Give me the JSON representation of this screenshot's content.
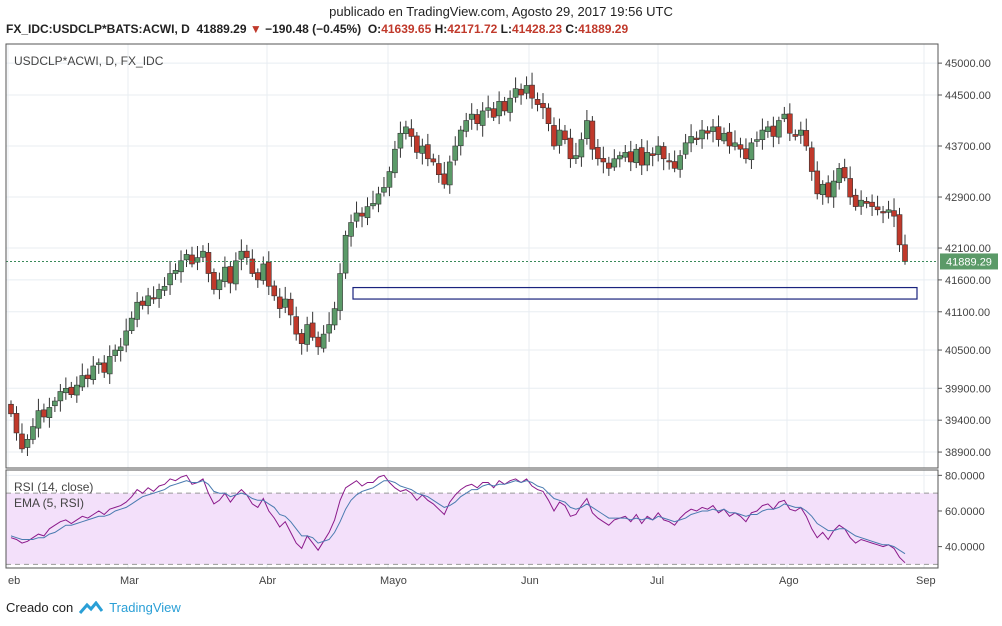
{
  "header": {
    "published": "publicado en TradingView.com, Agosto 29, 2017 19:56 UTC",
    "symbol": "FX_IDC:USDCLP*BATS:ACWI, D",
    "last": "41889.29",
    "change": "−190.48 (−0.45%)",
    "o_label": "O:",
    "o_value": "41639.65",
    "h_label": "H:",
    "h_value": "42171.72",
    "l_label": "L:",
    "l_value": "41428.23",
    "c_label": "C:",
    "c_value": "41889.29"
  },
  "footer": {
    "created": "Creado con",
    "brand": "TradingView"
  },
  "colors": {
    "up": "#5b9a68",
    "down": "#c0392b",
    "rsi": "#8b1a8b",
    "ema": "#4a7bb0",
    "band": "#f3e0fa",
    "grid": "#e8edf2"
  },
  "chart_data": [
    {
      "type": "candlestick",
      "legend": "USDCLP*ACWI, D, FX_IDC",
      "y_ticks": [
        45000,
        44500,
        43700,
        42900,
        42100,
        41600,
        41100,
        40500,
        39900,
        39400,
        38900
      ],
      "y_tick_labels": [
        "45000.00",
        "44500.00",
        "43700.00",
        "42900.00",
        "42100.00",
        "41600.00",
        "41100.00",
        "40500.00",
        "39900.00",
        "39400.00",
        "38900.00"
      ],
      "ylim": [
        38650,
        45300
      ],
      "x_tick_labels": [
        "eb",
        "Mar",
        "Abr",
        "Mayo",
        "Jun",
        "Jul",
        "Ago",
        "Sep"
      ],
      "last_price_label": "41889.29",
      "last_price": 41889.29,
      "zone": {
        "low": 41300,
        "high": 41480
      },
      "closes": [
        39500,
        39200,
        38950,
        39100,
        39300,
        39550,
        39450,
        39600,
        39700,
        39850,
        39900,
        39800,
        39950,
        40100,
        40050,
        40250,
        40300,
        40150,
        40400,
        40500,
        40550,
        40800,
        41000,
        41250,
        41200,
        41350,
        41300,
        41450,
        41500,
        41700,
        41750,
        41900,
        42000,
        41850,
        41950,
        42050,
        41700,
        41450,
        41600,
        41800,
        41550,
        41900,
        42050,
        41950,
        41700,
        41600,
        41850,
        41500,
        41350,
        41150,
        41300,
        41050,
        40750,
        40600,
        40900,
        40700,
        40550,
        40750,
        40900,
        41150,
        41700,
        42300,
        42500,
        42650,
        42600,
        42750,
        42800,
        42950,
        43050,
        43300,
        43650,
        43900,
        44000,
        43850,
        43600,
        43700,
        43500,
        43450,
        43250,
        43100,
        43450,
        43700,
        43950,
        44100,
        44200,
        44050,
        44250,
        44300,
        44150,
        44400,
        44250,
        44450,
        44600,
        44500,
        44650,
        44450,
        44350,
        44300,
        44050,
        43700,
        43950,
        43800,
        43500,
        43550,
        43800,
        44100,
        43650,
        43500,
        43450,
        43350,
        43500,
        43550,
        43600,
        43450,
        43650,
        43400,
        43600,
        43550,
        43700,
        43500,
        43450,
        43350,
        43550,
        43750,
        43850,
        43800,
        43950,
        43900,
        44000,
        43800,
        43900,
        43700,
        43750,
        43650,
        43500,
        43750,
        43800,
        43950,
        44000,
        43850,
        44100,
        44200,
        43900,
        43850,
        43950,
        43700,
        43300,
        42950,
        43100,
        42900,
        43150,
        43350,
        43200,
        42900,
        42750,
        42850,
        42800,
        42750,
        42700,
        42650,
        42700,
        42600,
        42150,
        41890
      ],
      "panel_legend_value": 41889.29
    },
    {
      "type": "line",
      "legend": [
        "RSI (14, close)",
        "EMA (5, RSI)"
      ],
      "y_ticks": [
        80,
        60,
        40
      ],
      "y_tick_labels": [
        "80.0000",
        "60.0000",
        "40.0000"
      ],
      "bands": [
        30,
        70
      ],
      "ylim": [
        28,
        83
      ],
      "series": [
        {
          "name": "RSI (14, close)",
          "values": [
            45,
            44,
            42,
            43,
            45,
            47,
            46,
            50,
            52,
            54,
            55,
            53,
            55,
            57,
            56,
            58,
            60,
            58,
            61,
            62,
            63,
            65,
            68,
            72,
            70,
            73,
            71,
            74,
            75,
            78,
            77,
            79,
            80,
            75,
            76,
            78,
            70,
            64,
            66,
            70,
            65,
            69,
            72,
            69,
            64,
            62,
            67,
            60,
            56,
            51,
            54,
            48,
            42,
            39,
            46,
            42,
            38,
            43,
            48,
            55,
            66,
            73,
            75,
            77,
            74,
            76,
            76,
            79,
            80,
            76,
            73,
            71,
            72,
            70,
            66,
            69,
            66,
            64,
            61,
            58,
            65,
            69,
            72,
            74,
            75,
            73,
            76,
            76,
            73,
            77,
            75,
            77,
            78,
            76,
            78,
            74,
            72,
            71,
            66,
            60,
            65,
            63,
            57,
            58,
            63,
            67,
            59,
            56,
            54,
            52,
            55,
            56,
            57,
            54,
            58,
            53,
            57,
            55,
            59,
            55,
            54,
            52,
            56,
            59,
            61,
            60,
            62,
            61,
            63,
            59,
            61,
            57,
            59,
            57,
            54,
            59,
            60,
            63,
            64,
            61,
            65,
            66,
            61,
            60,
            62,
            57,
            50,
            45,
            48,
            44,
            49,
            52,
            50,
            45,
            42,
            44,
            43,
            42,
            41,
            40,
            41,
            39,
            34,
            31
          ]
        },
        {
          "name": "EMA (5, RSI)",
          "values": [
            46,
            45,
            44,
            44,
            44,
            45,
            45,
            47,
            48,
            50,
            52,
            52,
            53,
            54,
            55,
            56,
            57,
            57,
            58,
            60,
            61,
            62,
            64,
            66,
            68,
            69,
            70,
            71,
            72,
            74,
            75,
            76,
            77,
            76,
            76,
            77,
            75,
            71,
            70,
            70,
            68,
            69,
            70,
            69,
            67,
            66,
            66,
            64,
            62,
            58,
            57,
            54,
            50,
            46,
            46,
            45,
            42,
            43,
            44,
            48,
            54,
            61,
            66,
            69,
            71,
            72,
            73,
            75,
            77,
            77,
            76,
            74,
            73,
            72,
            70,
            69,
            68,
            66,
            64,
            62,
            63,
            65,
            68,
            70,
            72,
            72,
            74,
            75,
            74,
            75,
            75,
            76,
            77,
            76,
            77,
            76,
            74,
            73,
            70,
            67,
            66,
            65,
            62,
            61,
            62,
            64,
            62,
            60,
            58,
            56,
            56,
            56,
            56,
            55,
            56,
            55,
            56,
            55,
            57,
            56,
            55,
            54,
            55,
            56,
            58,
            59,
            60,
            60,
            61,
            60,
            61,
            59,
            59,
            58,
            57,
            58,
            58,
            60,
            61,
            61,
            62,
            64,
            63,
            62,
            62,
            60,
            57,
            53,
            51,
            49,
            49,
            50,
            50,
            48,
            46,
            45,
            44,
            43,
            42,
            41,
            41,
            40,
            38,
            36
          ]
        }
      ]
    }
  ]
}
